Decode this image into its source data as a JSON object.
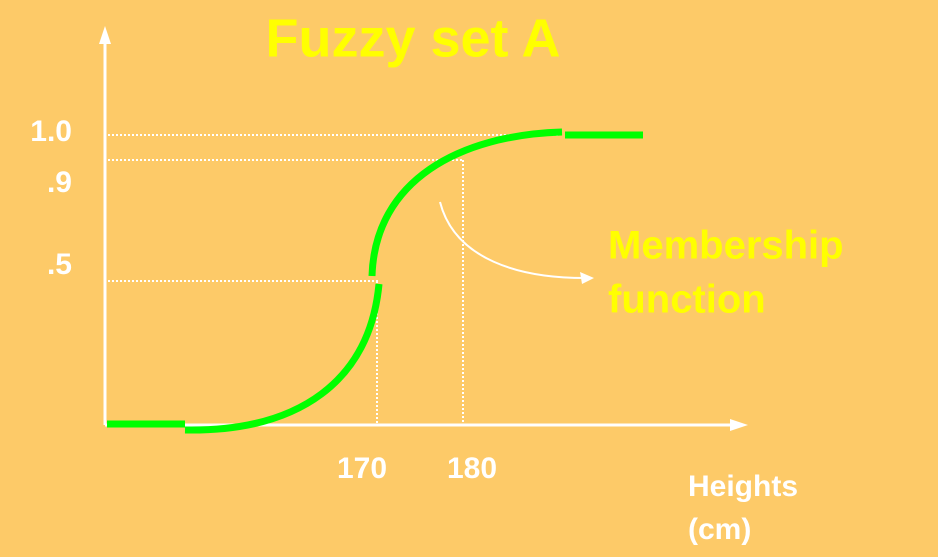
{
  "title": "Fuzzy set A",
  "y_labels": [
    "1.0",
    ".9",
    ".5"
  ],
  "x_labels": [
    "170",
    "180"
  ],
  "x_axis_label": [
    "Heights",
    "(cm)"
  ],
  "annotation": [
    "Membership",
    "function"
  ]
}
